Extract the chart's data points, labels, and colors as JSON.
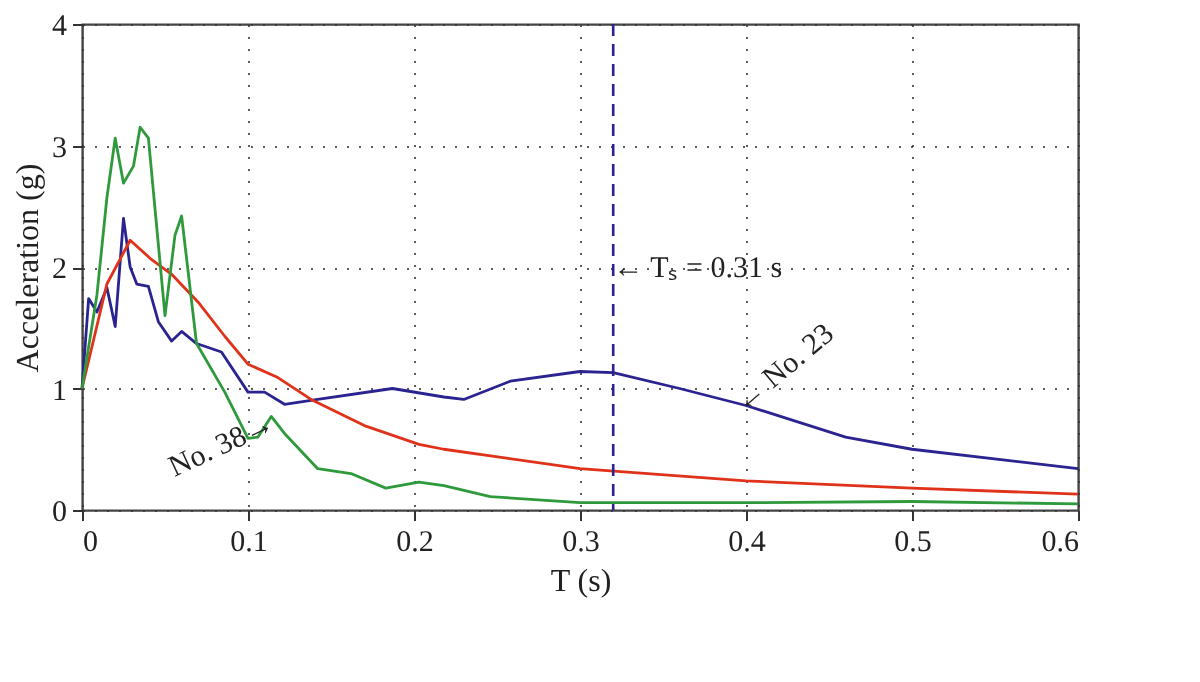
{
  "chart_data": {
    "type": "line",
    "xlabel": "T (s)",
    "ylabel": "Acceleration (g)",
    "xlim": [
      0,
      0.6
    ],
    "xticks": [
      0,
      0.1,
      0.2,
      0.3,
      0.4,
      0.5,
      0.6
    ],
    "ylim": [
      0,
      4
    ],
    "yticks": [
      0,
      1,
      2,
      3,
      4
    ],
    "grid": true,
    "line_style": "solid",
    "marker": "none",
    "series": [
      {
        "color": "#2a2390",
        "x": [
          0,
          0.004,
          0.009,
          0.015,
          0.02,
          0.025,
          0.029,
          0.033,
          0.04,
          0.046,
          0.054,
          0.06,
          0.069,
          0.084,
          0.1,
          0.11,
          0.122,
          0.142,
          0.187,
          0.218,
          0.23,
          0.258,
          0.3,
          0.32,
          0.36,
          0.4,
          0.46,
          0.5,
          0.6
        ],
        "values": [
          1.0,
          1.74,
          1.63,
          1.83,
          1.51,
          2.4,
          2.0,
          1.86,
          1.84,
          1.55,
          1.39,
          1.47,
          1.37,
          1.3,
          0.97,
          0.97,
          0.87,
          0.91,
          1.0,
          0.93,
          0.91,
          1.06,
          1.14,
          1.13,
          1.0,
          0.86,
          0.6,
          0.5,
          0.34
        ]
      },
      {
        "color": "#e0321a",
        "x": [
          0,
          0.015,
          0.029,
          0.042,
          0.054,
          0.07,
          0.086,
          0.1,
          0.118,
          0.138,
          0.171,
          0.203,
          0.218,
          0.3,
          0.4,
          0.5,
          0.6
        ],
        "values": [
          1.0,
          1.86,
          2.22,
          2.06,
          1.94,
          1.71,
          1.43,
          1.2,
          1.09,
          0.91,
          0.69,
          0.54,
          0.5,
          0.34,
          0.24,
          0.18,
          0.13
        ]
      },
      {
        "color": "#2e9a3c",
        "x": [
          0,
          0.009,
          0.015,
          0.02,
          0.025,
          0.031,
          0.035,
          0.04,
          0.05,
          0.056,
          0.06,
          0.069,
          0.086,
          0.1,
          0.106,
          0.114,
          0.122,
          0.142,
          0.162,
          0.183,
          0.203,
          0.218,
          0.246,
          0.3,
          0.4,
          0.5,
          0.6
        ],
        "values": [
          1.0,
          1.77,
          2.57,
          3.06,
          2.69,
          2.83,
          3.15,
          3.06,
          1.6,
          2.26,
          2.42,
          1.37,
          0.97,
          0.59,
          0.6,
          0.77,
          0.63,
          0.34,
          0.3,
          0.18,
          0.23,
          0.2,
          0.11,
          0.06,
          0.06,
          0.07,
          0.05
        ]
      }
    ],
    "ref_lines": [
      {
        "axis": "x",
        "value": 0.32,
        "color": "#2a2390",
        "line_style": "dashed"
      }
    ],
    "annotations": [
      {
        "text": "← Tₛ = 0.31 s",
        "x": 0.32,
        "y": 2.0
      },
      {
        "text": "No. 38→",
        "x": 0.112,
        "y": 0.72
      },
      {
        "text": "← No. 23",
        "x": 0.395,
        "y": 0.86
      }
    ]
  }
}
